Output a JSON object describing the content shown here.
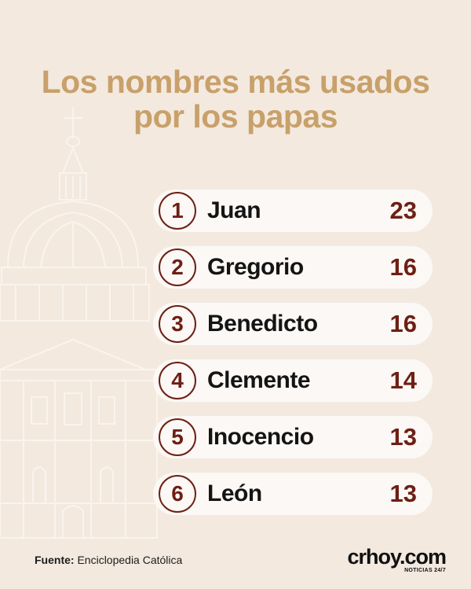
{
  "title_line1": "Los nombres más usados",
  "title_line2": "por los papas",
  "chart_data": {
    "type": "table",
    "title": "Los nombres más usados por los papas",
    "categories": [
      "Juan",
      "Gregorio",
      "Benedicto",
      "Clemente",
      "Inocencio",
      "León"
    ],
    "ranks": [
      "1",
      "2",
      "3",
      "4",
      "5",
      "6"
    ],
    "values": [
      23,
      16,
      16,
      14,
      13,
      13
    ],
    "rows": [
      {
        "rank": "1",
        "name": "Juan",
        "count": "23"
      },
      {
        "rank": "2",
        "name": "Gregorio",
        "count": "16"
      },
      {
        "rank": "3",
        "name": "Benedicto",
        "count": "16"
      },
      {
        "rank": "4",
        "name": "Clemente",
        "count": "14"
      },
      {
        "rank": "5",
        "name": "Inocencio",
        "count": "13"
      },
      {
        "rank": "6",
        "name": "León",
        "count": "13"
      }
    ]
  },
  "footer": {
    "source_label": "Fuente:",
    "source_text": "Enciclopedia Católica"
  },
  "logo": {
    "main": "crhoy.com",
    "tagline": "NOTICIAS 24/7"
  },
  "colors": {
    "background": "#f3e9df",
    "title": "#c8a06a",
    "accent": "#6e1f14",
    "row_fill": "#fbf8f5",
    "text": "#141414"
  },
  "icons": [
    "basilica-dome-illustration"
  ]
}
